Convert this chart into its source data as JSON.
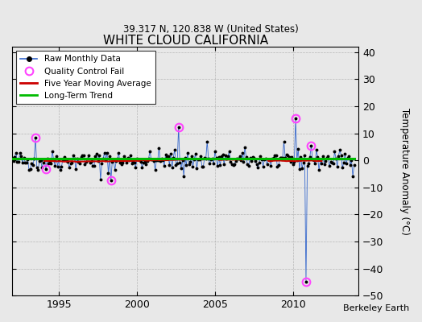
{
  "title": "WHITE CLOUD CALIFORNIA",
  "subtitle": "39.317 N, 120.838 W (United States)",
  "ylabel": "Temperature Anomaly (°C)",
  "attribution": "Berkeley Earth",
  "xlim": [
    1992.0,
    2014.2
  ],
  "ylim": [
    -50,
    42
  ],
  "yticks": [
    -50,
    -40,
    -30,
    -20,
    -10,
    0,
    10,
    20,
    30,
    40
  ],
  "xticks": [
    1995,
    2000,
    2005,
    2010
  ],
  "bg_color": "#e8e8e8",
  "plot_bg_color": "#e8e8e8",
  "raw_color": "#3366cc",
  "dot_color": "#000000",
  "qc_color": "#ff44ff",
  "five_yr_color": "#cc0000",
  "trend_color": "#00bb00",
  "seed": 42,
  "n_years": 22,
  "start_year": 1992.0,
  "outlier_indices": {
    "18": 8.5,
    "20": -3.5,
    "26": -3.2,
    "68": -7.2,
    "76": -7.5,
    "128": 12.2,
    "132": -5.8,
    "150": 7.0,
    "218": 15.5,
    "226": -45.0,
    "230": 5.5
  },
  "qc_indices": [
    18,
    26,
    76,
    128,
    218,
    226,
    230
  ]
}
